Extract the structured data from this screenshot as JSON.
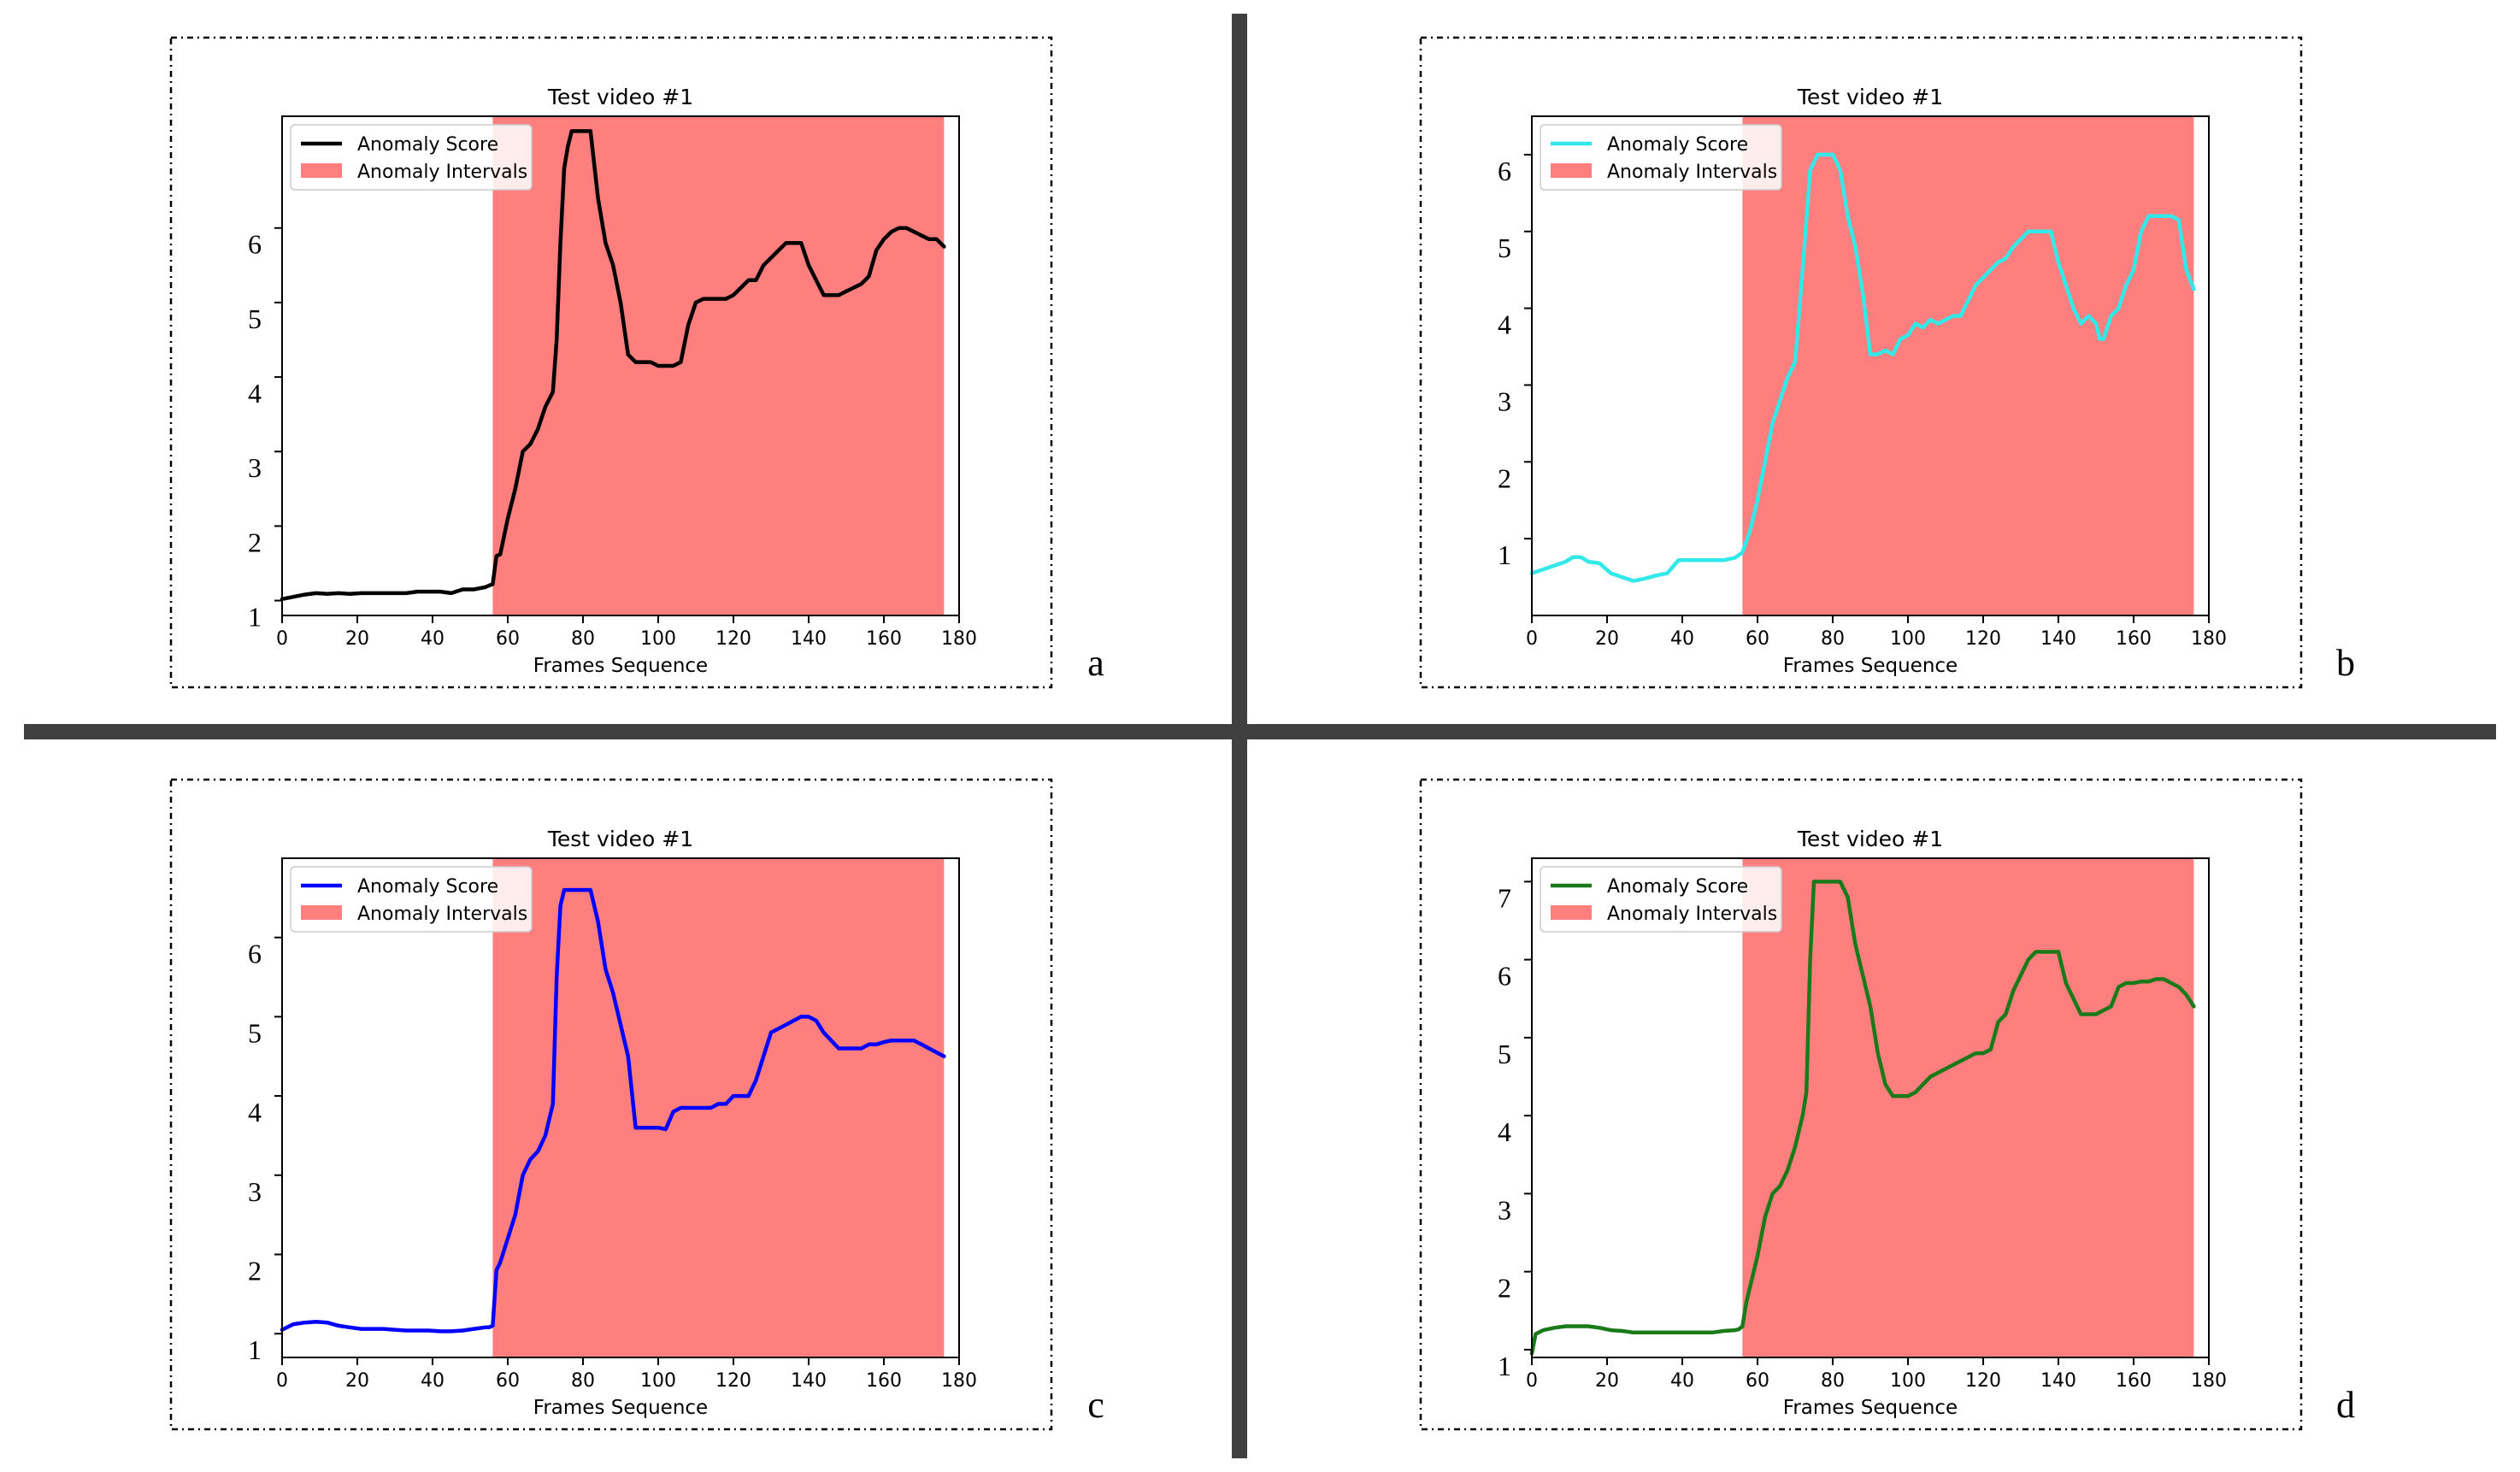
{
  "colors": {
    "anomaly_fill": "#ff7f7f",
    "divider": "#404040",
    "frame_border": "#000000"
  },
  "legend": {
    "score_label": "Anomaly Score",
    "interval_label": "Anomaly Intervals"
  },
  "chart_data": [
    {
      "panel": "a",
      "type": "line",
      "title": "Test video #1",
      "xlabel": "Frames Sequence",
      "ylabel": "",
      "xlim": [
        0,
        180
      ],
      "ylim": [
        0.8,
        7.5
      ],
      "xticks": [
        0,
        20,
        40,
        60,
        80,
        100,
        120,
        140,
        160,
        180
      ],
      "yticks": [
        1,
        2,
        3,
        4,
        5,
        6
      ],
      "ytick_labels": [
        "1",
        "2",
        "3",
        "4",
        "5",
        "6"
      ],
      "line_color": "#000000",
      "anomaly_interval": [
        56,
        176
      ],
      "series": [
        {
          "name": "Anomaly Score",
          "x": [
            0,
            3,
            6,
            9,
            12,
            15,
            18,
            21,
            24,
            27,
            30,
            33,
            36,
            39,
            42,
            45,
            48,
            51,
            54,
            55,
            56,
            57,
            58,
            60,
            62,
            64,
            66,
            68,
            70,
            72,
            73,
            74,
            75,
            76,
            77,
            78,
            80,
            82,
            84,
            86,
            88,
            90,
            92,
            94,
            96,
            98,
            100,
            102,
            104,
            106,
            108,
            110,
            112,
            114,
            116,
            118,
            120,
            122,
            124,
            126,
            128,
            130,
            132,
            134,
            136,
            138,
            140,
            142,
            144,
            146,
            148,
            150,
            152,
            154,
            156,
            158,
            160,
            162,
            164,
            166,
            168,
            170,
            172,
            174,
            176
          ],
          "values": [
            1.02,
            1.05,
            1.08,
            1.1,
            1.09,
            1.1,
            1.09,
            1.1,
            1.1,
            1.1,
            1.1,
            1.1,
            1.12,
            1.12,
            1.12,
            1.1,
            1.15,
            1.15,
            1.18,
            1.2,
            1.22,
            1.6,
            1.62,
            2.1,
            2.5,
            3.0,
            3.1,
            3.3,
            3.6,
            3.8,
            4.5,
            5.8,
            6.8,
            7.1,
            7.3,
            7.3,
            7.3,
            7.3,
            6.4,
            5.8,
            5.5,
            5.0,
            4.3,
            4.2,
            4.2,
            4.2,
            4.15,
            4.15,
            4.15,
            4.2,
            4.7,
            5.0,
            5.05,
            5.05,
            5.05,
            5.05,
            5.1,
            5.2,
            5.3,
            5.3,
            5.5,
            5.6,
            5.7,
            5.8,
            5.8,
            5.8,
            5.5,
            5.3,
            5.1,
            5.1,
            5.1,
            5.15,
            5.2,
            5.25,
            5.35,
            5.7,
            5.85,
            5.95,
            6.0,
            6.0,
            5.95,
            5.9,
            5.85,
            5.85,
            5.75
          ]
        }
      ]
    },
    {
      "panel": "b",
      "type": "line",
      "title": "Test video #1",
      "xlabel": "Frames Sequence",
      "ylabel": "",
      "xlim": [
        0,
        180
      ],
      "ylim": [
        0,
        6.5
      ],
      "xticks": [
        0,
        20,
        40,
        60,
        80,
        100,
        120,
        140,
        160,
        180
      ],
      "yticks": [
        1,
        2,
        3,
        4,
        5,
        6
      ],
      "ytick_labels": [
        "1",
        "2",
        "3",
        "4",
        "5",
        "6"
      ],
      "line_color": "#32e8e8",
      "anomaly_interval": [
        56,
        176
      ],
      "series": [
        {
          "name": "Anomaly Score",
          "x": [
            0,
            3,
            6,
            9,
            11,
            13,
            15,
            18,
            21,
            24,
            27,
            30,
            33,
            36,
            39,
            42,
            45,
            48,
            51,
            54,
            56,
            58,
            60,
            62,
            64,
            66,
            68,
            70,
            72,
            74,
            76,
            78,
            80,
            82,
            84,
            86,
            88,
            90,
            92,
            94,
            96,
            98,
            100,
            102,
            104,
            106,
            108,
            110,
            112,
            114,
            116,
            118,
            120,
            122,
            124,
            126,
            128,
            130,
            132,
            134,
            136,
            138,
            140,
            142,
            144,
            146,
            148,
            150,
            151,
            152,
            154,
            156,
            158,
            160,
            162,
            164,
            166,
            168,
            170,
            172,
            174,
            176
          ],
          "values": [
            0.55,
            0.6,
            0.65,
            0.7,
            0.76,
            0.76,
            0.7,
            0.68,
            0.55,
            0.5,
            0.45,
            0.48,
            0.52,
            0.55,
            0.72,
            0.72,
            0.72,
            0.72,
            0.72,
            0.75,
            0.82,
            1.1,
            1.5,
            2.0,
            2.5,
            2.8,
            3.1,
            3.3,
            4.5,
            5.8,
            6.0,
            6.0,
            6.0,
            5.8,
            5.2,
            4.8,
            4.2,
            3.4,
            3.4,
            3.45,
            3.4,
            3.6,
            3.65,
            3.8,
            3.75,
            3.85,
            3.8,
            3.85,
            3.9,
            3.9,
            4.1,
            4.3,
            4.4,
            4.5,
            4.6,
            4.65,
            4.8,
            4.9,
            5.0,
            5.0,
            5.0,
            5.0,
            4.6,
            4.3,
            4.0,
            3.8,
            3.9,
            3.8,
            3.6,
            3.6,
            3.9,
            4.0,
            4.3,
            4.5,
            5.0,
            5.2,
            5.2,
            5.2,
            5.2,
            5.15,
            4.5,
            4.25
          ]
        }
      ]
    },
    {
      "panel": "c",
      "type": "line",
      "title": "Test video #1",
      "xlabel": "Frames Sequence",
      "ylabel": "",
      "xlim": [
        0,
        180
      ],
      "ylim": [
        0.7,
        7.0
      ],
      "xticks": [
        0,
        20,
        40,
        60,
        80,
        100,
        120,
        140,
        160,
        180
      ],
      "yticks": [
        1,
        2,
        3,
        4,
        5,
        6
      ],
      "ytick_labels": [
        "1",
        "2",
        "3",
        "4",
        "5",
        "6"
      ],
      "line_color": "#0000ff",
      "anomaly_interval": [
        56,
        176
      ],
      "series": [
        {
          "name": "Anomaly Score",
          "x": [
            0,
            3,
            6,
            9,
            12,
            15,
            18,
            21,
            24,
            27,
            30,
            33,
            36,
            39,
            42,
            45,
            48,
            51,
            54,
            55,
            56,
            57,
            58,
            60,
            62,
            64,
            66,
            68,
            70,
            72,
            73,
            74,
            75,
            76,
            77,
            78,
            80,
            82,
            84,
            86,
            88,
            90,
            92,
            94,
            96,
            98,
            100,
            102,
            104,
            106,
            108,
            110,
            112,
            114,
            116,
            118,
            120,
            122,
            124,
            126,
            128,
            130,
            132,
            134,
            136,
            138,
            140,
            142,
            144,
            146,
            148,
            150,
            152,
            154,
            156,
            158,
            160,
            162,
            164,
            166,
            168,
            170,
            172,
            174,
            176
          ],
          "values": [
            1.05,
            1.12,
            1.14,
            1.15,
            1.14,
            1.1,
            1.08,
            1.06,
            1.06,
            1.06,
            1.05,
            1.04,
            1.04,
            1.04,
            1.03,
            1.03,
            1.04,
            1.06,
            1.08,
            1.08,
            1.1,
            1.8,
            1.9,
            2.2,
            2.5,
            3.0,
            3.2,
            3.3,
            3.5,
            3.9,
            5.5,
            6.4,
            6.6,
            6.6,
            6.6,
            6.6,
            6.6,
            6.6,
            6.2,
            5.6,
            5.3,
            4.9,
            4.5,
            3.6,
            3.6,
            3.6,
            3.6,
            3.58,
            3.8,
            3.85,
            3.85,
            3.85,
            3.85,
            3.85,
            3.9,
            3.9,
            4.0,
            4.0,
            4.0,
            4.2,
            4.5,
            4.8,
            4.85,
            4.9,
            4.95,
            5.0,
            5.0,
            4.95,
            4.8,
            4.7,
            4.6,
            4.6,
            4.6,
            4.6,
            4.65,
            4.65,
            4.68,
            4.7,
            4.7,
            4.7,
            4.7,
            4.65,
            4.6,
            4.55,
            4.5
          ]
        }
      ]
    },
    {
      "panel": "d",
      "type": "line",
      "title": "Test video #1",
      "xlabel": "Frames Sequence",
      "ylabel": "",
      "xlim": [
        0,
        180
      ],
      "ylim": [
        0.9,
        7.3
      ],
      "xticks": [
        0,
        20,
        40,
        60,
        80,
        100,
        120,
        140,
        160,
        180
      ],
      "yticks": [
        1,
        2,
        3,
        4,
        5,
        6,
        7
      ],
      "ytick_labels": [
        "1",
        "2",
        "3",
        "4",
        "5",
        "6",
        "7"
      ],
      "line_color": "#1a7a1a",
      "anomaly_interval": [
        56,
        176
      ],
      "series": [
        {
          "name": "Anomaly Score",
          "x": [
            0,
            1,
            3,
            6,
            9,
            12,
            15,
            18,
            21,
            24,
            27,
            30,
            33,
            36,
            39,
            42,
            45,
            48,
            51,
            54,
            55,
            56,
            57,
            58,
            60,
            62,
            64,
            66,
            68,
            70,
            72,
            73,
            74,
            75,
            76,
            77,
            78,
            80,
            82,
            84,
            86,
            88,
            90,
            92,
            94,
            96,
            98,
            100,
            102,
            104,
            106,
            108,
            110,
            112,
            114,
            116,
            118,
            120,
            122,
            124,
            126,
            128,
            130,
            132,
            134,
            136,
            138,
            140,
            142,
            144,
            146,
            148,
            150,
            152,
            154,
            156,
            158,
            160,
            162,
            164,
            166,
            168,
            170,
            172,
            174,
            176
          ],
          "values": [
            0.95,
            1.2,
            1.25,
            1.28,
            1.3,
            1.3,
            1.3,
            1.28,
            1.25,
            1.24,
            1.22,
            1.22,
            1.22,
            1.22,
            1.22,
            1.22,
            1.22,
            1.22,
            1.24,
            1.25,
            1.26,
            1.3,
            1.6,
            1.8,
            2.2,
            2.7,
            3.0,
            3.1,
            3.3,
            3.6,
            4.0,
            4.3,
            6.0,
            7.0,
            7.0,
            7.0,
            7.0,
            7.0,
            7.0,
            6.8,
            6.2,
            5.8,
            5.4,
            4.8,
            4.4,
            4.25,
            4.25,
            4.25,
            4.3,
            4.4,
            4.5,
            4.55,
            4.6,
            4.65,
            4.7,
            4.75,
            4.8,
            4.8,
            4.85,
            5.2,
            5.3,
            5.6,
            5.8,
            6.0,
            6.1,
            6.1,
            6.1,
            6.1,
            5.7,
            5.5,
            5.3,
            5.3,
            5.3,
            5.35,
            5.4,
            5.65,
            5.7,
            5.7,
            5.72,
            5.72,
            5.75,
            5.75,
            5.7,
            5.65,
            5.55,
            5.4
          ]
        }
      ]
    }
  ]
}
